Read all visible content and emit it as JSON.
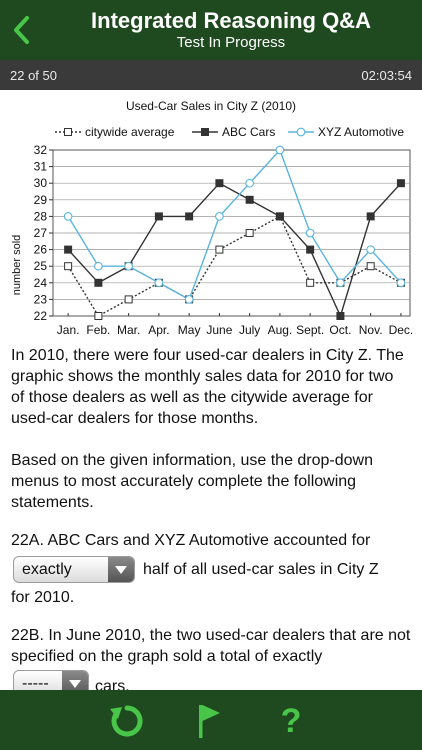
{
  "header": {
    "title": "Integrated Reasoning Q&A",
    "subtitle": "Test In Progress"
  },
  "status": {
    "progress": "22 of 50",
    "timer": "02:03:54"
  },
  "chart_data": {
    "type": "line",
    "title": "Used-Car Sales in City Z (2010)",
    "ylabel": "number sold",
    "xlabel": "",
    "categories": [
      "Jan.",
      "Feb.",
      "Mar.",
      "Apr.",
      "May",
      "June",
      "July",
      "Aug.",
      "Sept.",
      "Oct.",
      "Nov.",
      "Dec."
    ],
    "ylim": [
      22,
      32
    ],
    "yticks": [
      22,
      23,
      24,
      25,
      26,
      27,
      28,
      29,
      30,
      31,
      32
    ],
    "grid": "horizontal",
    "legend_position": "top",
    "series": [
      {
        "name": "citywide average",
        "values": [
          25,
          22,
          23,
          24,
          23,
          26,
          27,
          28,
          24,
          24,
          25,
          24
        ],
        "color": "#333333",
        "marker": "open-square",
        "dash": true
      },
      {
        "name": "ABC Cars",
        "values": [
          26,
          24,
          25,
          28,
          28,
          30,
          29,
          28,
          26,
          22,
          28,
          30
        ],
        "color": "#333333",
        "marker": "filled-square",
        "dash": false
      },
      {
        "name": "XYZ Automotive",
        "values": [
          28,
          25,
          25,
          24,
          23,
          28,
          30,
          32,
          27,
          24,
          26,
          24
        ],
        "color": "#5ab4de",
        "marker": "open-circle",
        "dash": false
      }
    ]
  },
  "question": {
    "intro": "In 2010, there were four used-car dealers in City Z. The graphic shows the monthly sales data for 2010 for two of those dealers as well as the citywide average for used-car dealers for those months.",
    "instruction": "Based on the given information, use the drop-down menus to most accurately complete the following statements.",
    "q22a_prefix": "22A. ABC Cars and XYZ Automotive accounted for",
    "q22a_select": "exactly",
    "q22a_suffix_1": "half of all used-car sales in City Z",
    "q22a_suffix_2": "for 2010.",
    "q22b_prefix": "22B. In June 2010, the two used-car dealers that are not specified on the graph sold a total of exactly",
    "q22b_select": "-----",
    "q22b_suffix": "cars."
  },
  "footer": {
    "icons": [
      "refresh-icon",
      "flag-icon",
      "help-icon"
    ],
    "help_glyph": "?"
  }
}
